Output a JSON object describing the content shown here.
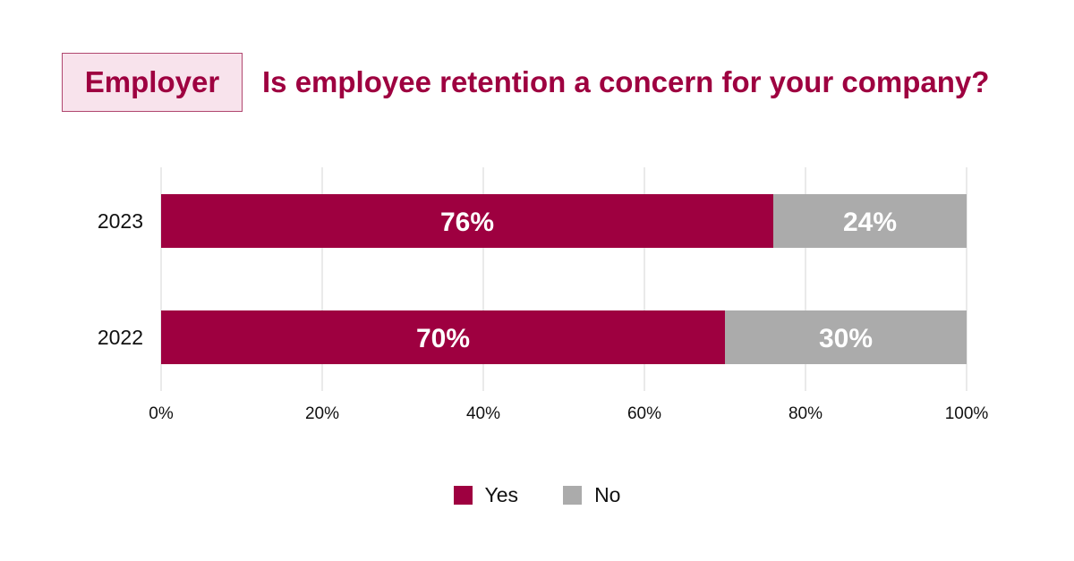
{
  "header": {
    "badge": "Employer",
    "title": "Is employee retention a concern for your company?"
  },
  "chart_data": {
    "type": "bar",
    "orientation": "horizontal",
    "stacked": true,
    "categories": [
      "2023",
      "2022"
    ],
    "series": [
      {
        "name": "Yes",
        "values": [
          76,
          70
        ],
        "labels": [
          "76%",
          "70%"
        ],
        "color": "#9e0040"
      },
      {
        "name": "No",
        "values": [
          24,
          30
        ],
        "labels": [
          "24%",
          "30%"
        ],
        "color": "#ababab"
      }
    ],
    "xlim": [
      0,
      100
    ],
    "xticks": [
      0,
      20,
      40,
      60,
      80,
      100
    ],
    "xtick_labels": [
      "0%",
      "20%",
      "40%",
      "60%",
      "80%",
      "100%"
    ],
    "grid": true,
    "gridline_color": "#e3e3e3",
    "legend_position": "bottom-center"
  }
}
